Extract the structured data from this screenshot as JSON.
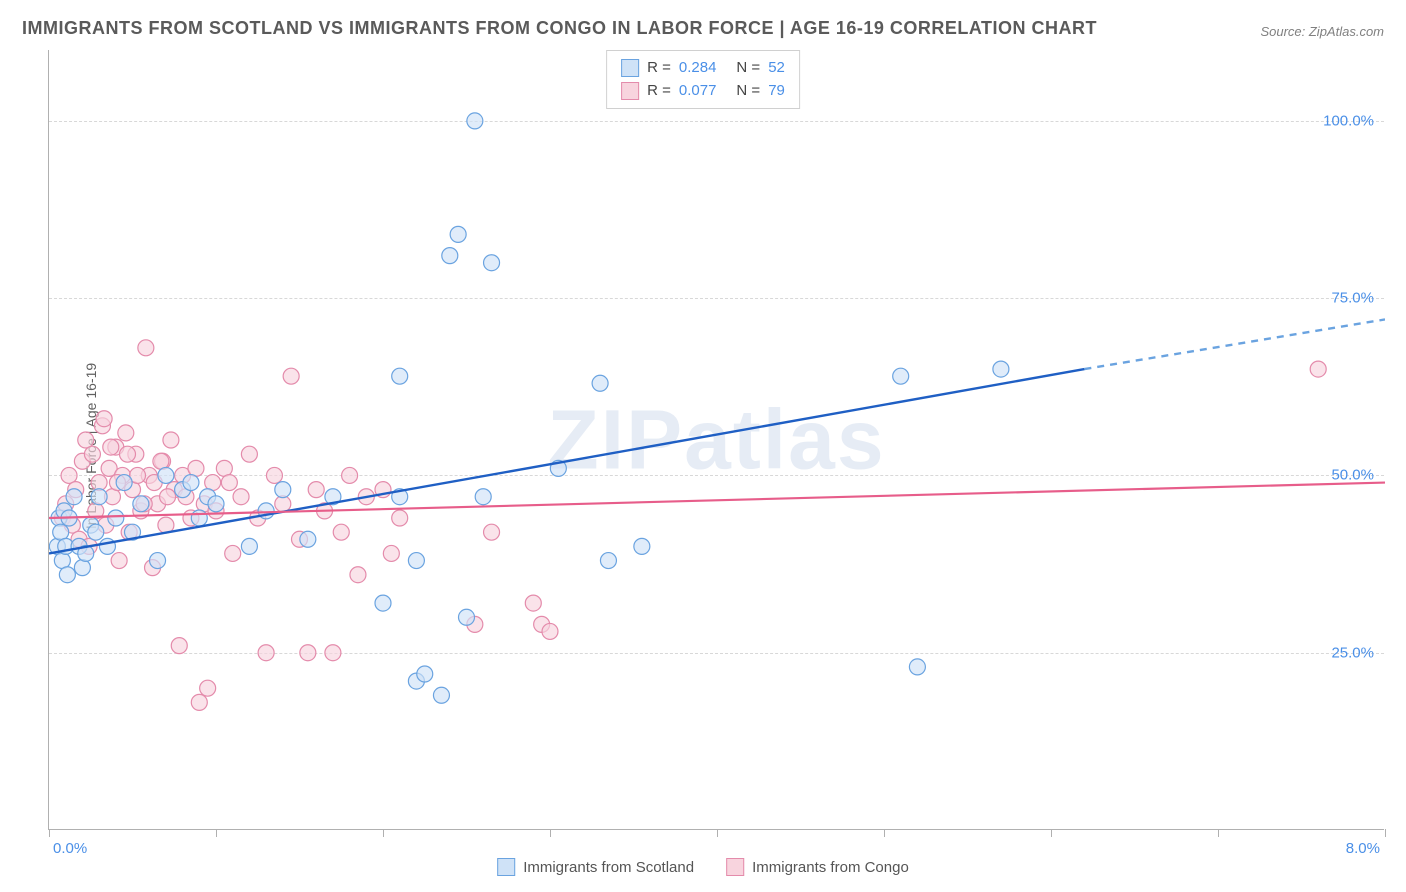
{
  "title": "IMMIGRANTS FROM SCOTLAND VS IMMIGRANTS FROM CONGO IN LABOR FORCE | AGE 16-19 CORRELATION CHART",
  "source": "Source: ZipAtlas.com",
  "watermark": "ZIPatlas",
  "ylabel": "In Labor Force | Age 16-19",
  "chart": {
    "type": "scatter",
    "xlim": [
      0,
      8
    ],
    "ylim": [
      0,
      110
    ],
    "x_ticks": [
      0,
      1,
      2,
      3,
      4,
      5,
      6,
      7,
      8
    ],
    "y_gridlines": [
      25,
      50,
      75,
      100
    ],
    "y_tick_labels": [
      "25.0%",
      "50.0%",
      "75.0%",
      "100.0%"
    ],
    "x_min_label": "0.0%",
    "x_max_label": "8.0%",
    "background_color": "#ffffff",
    "grid_color": "#d8d8d8",
    "axis_color": "#b0b0b0",
    "tick_label_color": "#4a8fe7",
    "marker_radius": 8,
    "marker_stroke_width": 1.2,
    "series": [
      {
        "name": "Immigrants from Scotland",
        "fill": "#cfe2f7",
        "stroke": "#6aa3e0",
        "fill_opacity": 0.65,
        "line_color": "#1f5fc4",
        "line_width": 2.4,
        "dash_color": "#6aa3e0",
        "r_value": "0.284",
        "n_value": "52",
        "trend": {
          "x1": 0,
          "y1": 39,
          "x2": 6.2,
          "y2": 65,
          "dash_to_x": 8.0,
          "dash_to_y": 72
        },
        "points": [
          [
            0.05,
            40
          ],
          [
            0.06,
            44
          ],
          [
            0.07,
            42
          ],
          [
            0.08,
            38
          ],
          [
            0.09,
            45
          ],
          [
            0.1,
            40
          ],
          [
            0.11,
            36
          ],
          [
            0.12,
            44
          ],
          [
            0.2,
            37
          ],
          [
            0.25,
            43
          ],
          [
            0.3,
            47
          ],
          [
            0.35,
            40
          ],
          [
            0.4,
            44
          ],
          [
            0.45,
            49
          ],
          [
            0.5,
            42
          ],
          [
            0.55,
            46
          ],
          [
            0.65,
            38
          ],
          [
            0.7,
            50
          ],
          [
            0.8,
            48
          ],
          [
            0.85,
            49
          ],
          [
            0.9,
            44
          ],
          [
            0.95,
            47
          ],
          [
            1.0,
            46
          ],
          [
            1.2,
            40
          ],
          [
            1.3,
            45
          ],
          [
            1.4,
            48
          ],
          [
            1.55,
            41
          ],
          [
            1.7,
            47
          ],
          [
            2.0,
            32
          ],
          [
            2.1,
            64
          ],
          [
            2.1,
            47
          ],
          [
            2.2,
            21
          ],
          [
            2.2,
            38
          ],
          [
            2.25,
            22
          ],
          [
            2.35,
            19
          ],
          [
            2.4,
            81
          ],
          [
            2.45,
            84
          ],
          [
            2.5,
            30
          ],
          [
            2.55,
            100
          ],
          [
            2.6,
            47
          ],
          [
            2.65,
            80
          ],
          [
            3.05,
            51
          ],
          [
            3.3,
            63
          ],
          [
            3.35,
            38
          ],
          [
            3.55,
            40
          ],
          [
            5.1,
            64
          ],
          [
            5.2,
            23
          ],
          [
            5.7,
            65
          ],
          [
            0.15,
            47
          ],
          [
            0.18,
            40
          ],
          [
            0.22,
            39
          ],
          [
            0.28,
            42
          ]
        ]
      },
      {
        "name": "Immigrants from Congo",
        "fill": "#f8d4de",
        "stroke": "#e48bab",
        "fill_opacity": 0.65,
        "line_color": "#e75d8a",
        "line_width": 2.2,
        "r_value": "0.077",
        "n_value": "79",
        "trend": {
          "x1": 0,
          "y1": 44,
          "x2": 8.0,
          "y2": 49
        },
        "points": [
          [
            0.08,
            44
          ],
          [
            0.1,
            46
          ],
          [
            0.12,
            50
          ],
          [
            0.14,
            43
          ],
          [
            0.16,
            48
          ],
          [
            0.18,
            41
          ],
          [
            0.2,
            52
          ],
          [
            0.22,
            55
          ],
          [
            0.24,
            40
          ],
          [
            0.26,
            53
          ],
          [
            0.28,
            45
          ],
          [
            0.3,
            49
          ],
          [
            0.32,
            57
          ],
          [
            0.34,
            43
          ],
          [
            0.36,
            51
          ],
          [
            0.38,
            47
          ],
          [
            0.4,
            54
          ],
          [
            0.42,
            38
          ],
          [
            0.44,
            50
          ],
          [
            0.46,
            56
          ],
          [
            0.48,
            42
          ],
          [
            0.5,
            48
          ],
          [
            0.52,
            53
          ],
          [
            0.55,
            45
          ],
          [
            0.58,
            68
          ],
          [
            0.6,
            50
          ],
          [
            0.62,
            37
          ],
          [
            0.65,
            46
          ],
          [
            0.68,
            52
          ],
          [
            0.7,
            43
          ],
          [
            0.73,
            55
          ],
          [
            0.75,
            48
          ],
          [
            0.78,
            26
          ],
          [
            0.8,
            50
          ],
          [
            0.82,
            47
          ],
          [
            0.85,
            44
          ],
          [
            0.88,
            51
          ],
          [
            0.9,
            18
          ],
          [
            0.93,
            46
          ],
          [
            0.95,
            20
          ],
          [
            0.98,
            49
          ],
          [
            1.0,
            45
          ],
          [
            1.05,
            51
          ],
          [
            1.1,
            39
          ],
          [
            1.15,
            47
          ],
          [
            1.2,
            53
          ],
          [
            1.25,
            44
          ],
          [
            1.3,
            25
          ],
          [
            1.35,
            50
          ],
          [
            1.4,
            46
          ],
          [
            1.45,
            64
          ],
          [
            1.5,
            41
          ],
          [
            1.55,
            25
          ],
          [
            1.6,
            48
          ],
          [
            1.65,
            45
          ],
          [
            1.7,
            25
          ],
          [
            1.75,
            42
          ],
          [
            1.8,
            50
          ],
          [
            1.85,
            36
          ],
          [
            1.9,
            47
          ],
          [
            2.0,
            48
          ],
          [
            2.05,
            39
          ],
          [
            2.1,
            44
          ],
          [
            2.55,
            29
          ],
          [
            2.65,
            42
          ],
          [
            2.9,
            32
          ],
          [
            2.95,
            29
          ],
          [
            3.0,
            28
          ],
          [
            7.6,
            65
          ],
          [
            0.33,
            58
          ],
          [
            0.37,
            54
          ],
          [
            0.41,
            49
          ],
          [
            0.47,
            53
          ],
          [
            0.53,
            50
          ],
          [
            0.57,
            46
          ],
          [
            0.63,
            49
          ],
          [
            0.67,
            52
          ],
          [
            0.71,
            47
          ],
          [
            1.08,
            49
          ]
        ]
      }
    ]
  },
  "legend": {
    "r_label": "R =",
    "n_label": "N ="
  },
  "bottom_legend": {
    "items": [
      {
        "label": "Immigrants from Scotland",
        "fill": "#cfe2f7",
        "stroke": "#6aa3e0"
      },
      {
        "label": "Immigrants from Congo",
        "fill": "#f8d4de",
        "stroke": "#e48bab"
      }
    ]
  }
}
